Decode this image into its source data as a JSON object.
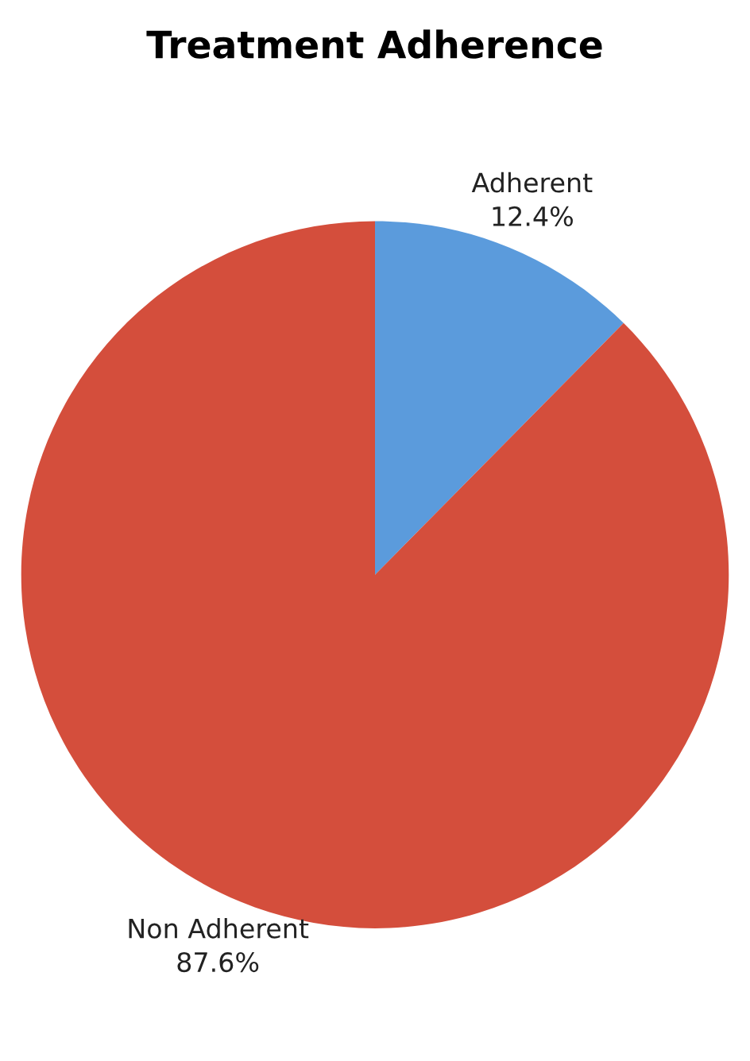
{
  "chart_data": {
    "type": "pie",
    "title": "Treatment Adherence",
    "categories": [
      "Adherent",
      "Non Adherent"
    ],
    "values": [
      12.4,
      87.6
    ],
    "value_labels": [
      "12.4%",
      "87.6%"
    ],
    "colors": [
      "#5b9bdc",
      "#d44e3c"
    ],
    "legend": false
  }
}
